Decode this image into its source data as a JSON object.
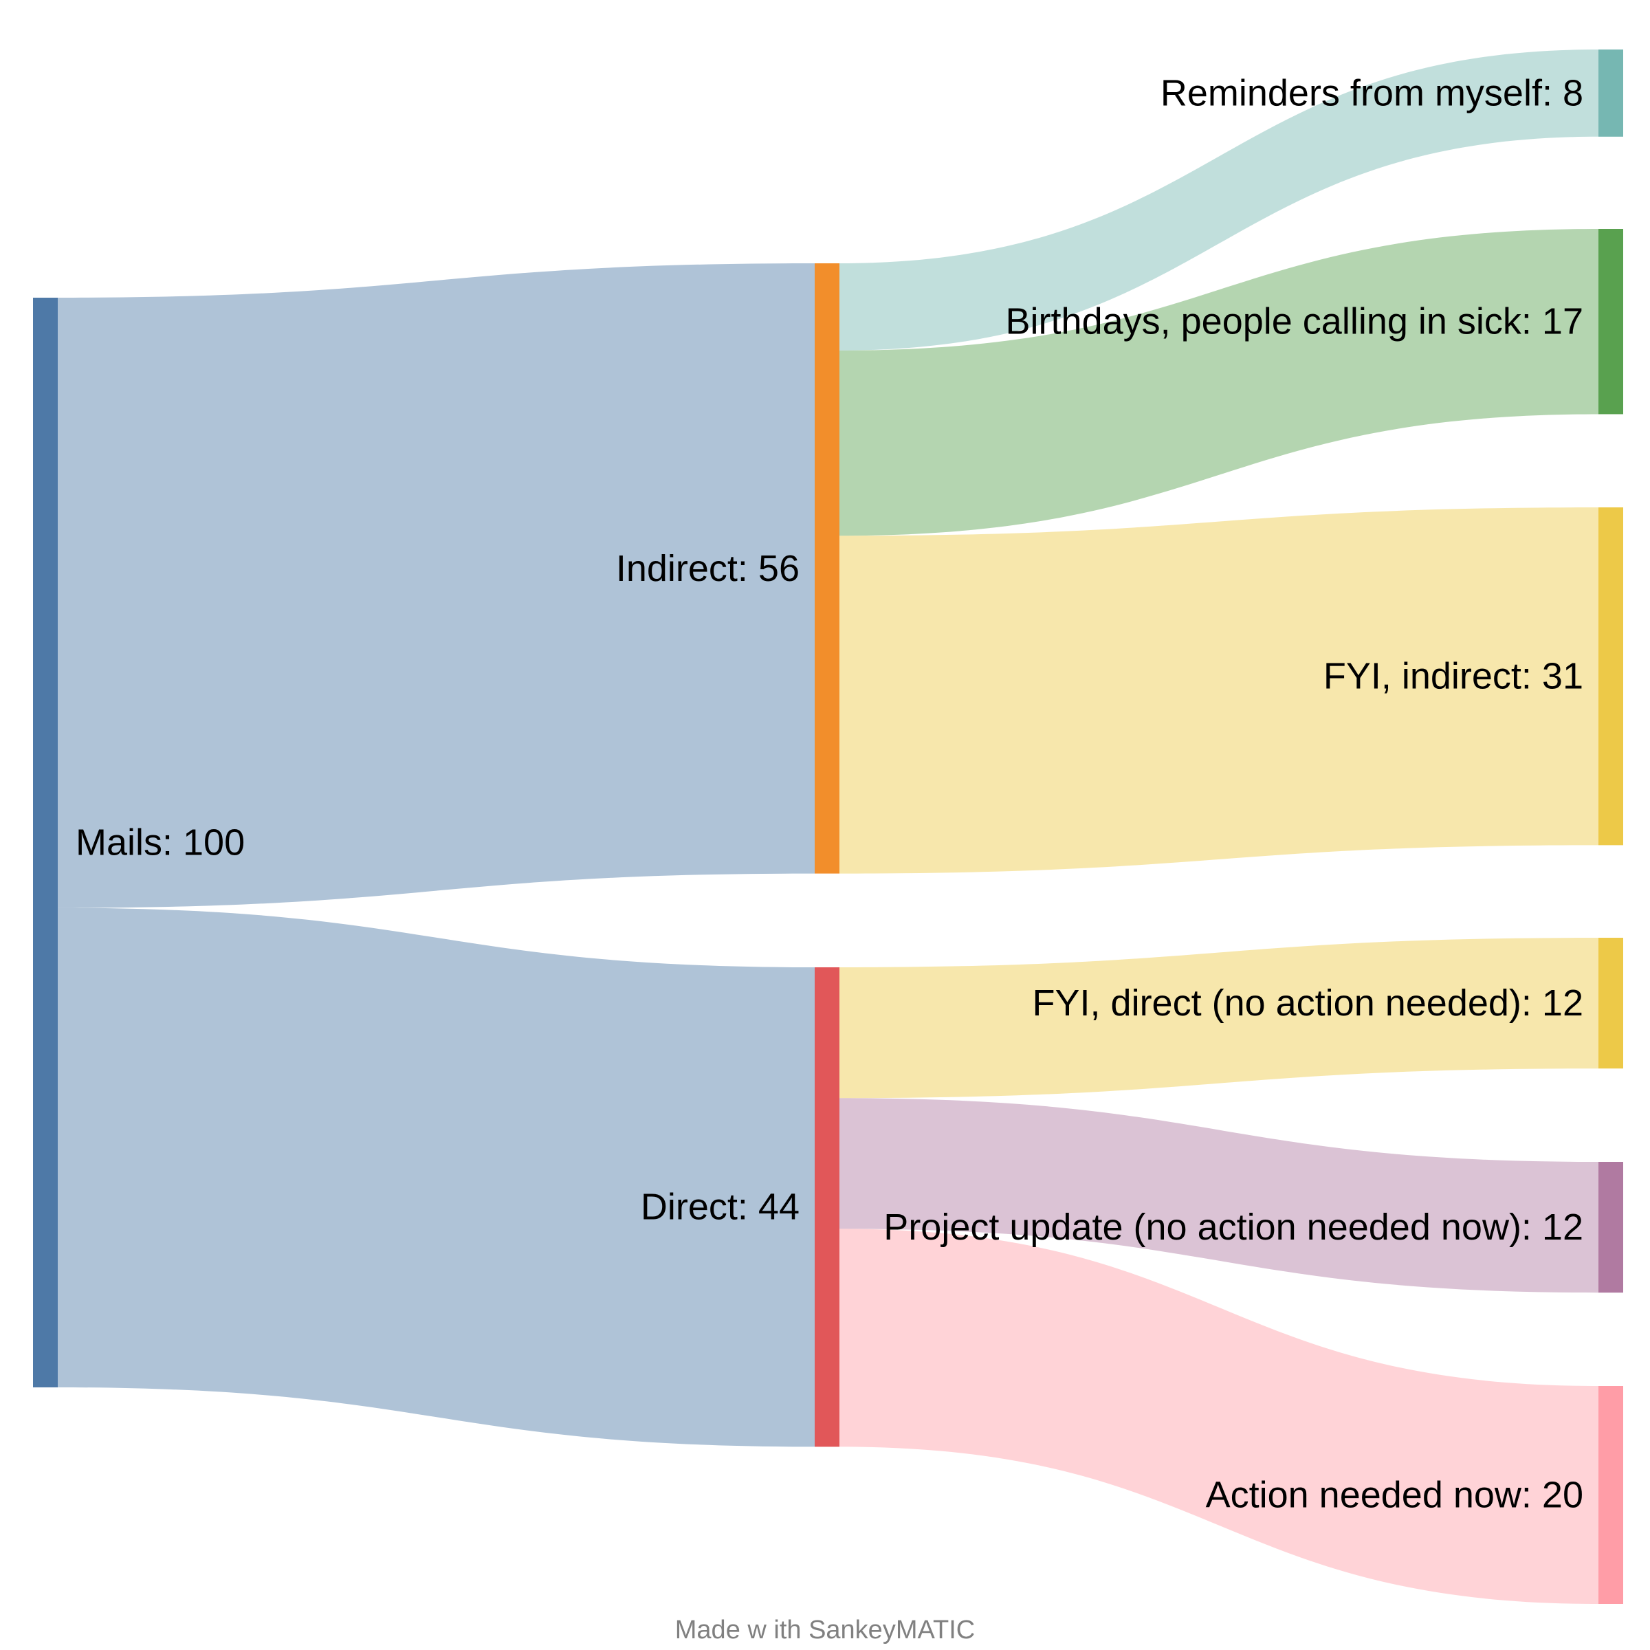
{
  "credit": "Made w ith SankeyMATIC",
  "chart_data": {
    "type": "sankey",
    "nodes": [
      {
        "id": "mails",
        "label": "Mails: 100",
        "value": 100,
        "color": "#4e79a7"
      },
      {
        "id": "indirect",
        "label": "Indirect: 56",
        "value": 56,
        "color": "#f28e2b"
      },
      {
        "id": "direct",
        "label": "Direct: 44",
        "value": 44,
        "color": "#e15759"
      },
      {
        "id": "reminders",
        "label": "Reminders from myself: 8",
        "value": 8,
        "color": "#76b7b2"
      },
      {
        "id": "birthdays",
        "label": "Birthdays, people calling in sick: 17",
        "value": 17,
        "color": "#59a14f"
      },
      {
        "id": "fyi_indirect",
        "label": "FYI, indirect: 31",
        "value": 31,
        "color": "#edc948"
      },
      {
        "id": "fyi_direct",
        "label": "FYI, direct (no action needed): 12",
        "value": 12,
        "color": "#edc948"
      },
      {
        "id": "project_update",
        "label": "Project update (no action needed now): 12",
        "value": 12,
        "color": "#b07aa1"
      },
      {
        "id": "action_now",
        "label": "Action needed now: 20",
        "value": 20,
        "color": "#ff9da7"
      }
    ],
    "links": [
      {
        "source": "mails",
        "target": "indirect",
        "value": 56
      },
      {
        "source": "mails",
        "target": "direct",
        "value": 44
      },
      {
        "source": "indirect",
        "target": "reminders",
        "value": 8
      },
      {
        "source": "indirect",
        "target": "birthdays",
        "value": 17
      },
      {
        "source": "indirect",
        "target": "fyi_indirect",
        "value": 31
      },
      {
        "source": "direct",
        "target": "fyi_direct",
        "value": 12
      },
      {
        "source": "direct",
        "target": "project_update",
        "value": 12
      },
      {
        "source": "direct",
        "target": "action_now",
        "value": 20
      }
    ]
  }
}
